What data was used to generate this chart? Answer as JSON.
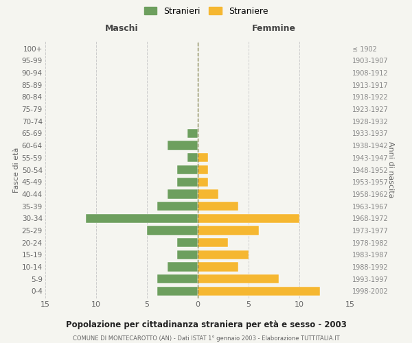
{
  "age_groups": [
    "0-4",
    "5-9",
    "10-14",
    "15-19",
    "20-24",
    "25-29",
    "30-34",
    "35-39",
    "40-44",
    "45-49",
    "50-54",
    "55-59",
    "60-64",
    "65-69",
    "70-74",
    "75-79",
    "80-84",
    "85-89",
    "90-94",
    "95-99",
    "100+"
  ],
  "birth_years": [
    "1998-2002",
    "1993-1997",
    "1988-1992",
    "1983-1987",
    "1978-1982",
    "1973-1977",
    "1968-1972",
    "1963-1967",
    "1958-1962",
    "1953-1957",
    "1948-1952",
    "1943-1947",
    "1938-1942",
    "1933-1937",
    "1928-1932",
    "1923-1927",
    "1918-1922",
    "1913-1917",
    "1908-1912",
    "1903-1907",
    "≤ 1902"
  ],
  "males": [
    4,
    4,
    3,
    2,
    2,
    5,
    11,
    4,
    3,
    2,
    2,
    1,
    3,
    1,
    0,
    0,
    0,
    0,
    0,
    0,
    0
  ],
  "females": [
    12,
    8,
    4,
    5,
    3,
    6,
    10,
    4,
    2,
    1,
    1,
    1,
    0,
    0,
    0,
    0,
    0,
    0,
    0,
    0,
    0
  ],
  "male_color": "#6d9f5e",
  "female_color": "#f5b731",
  "grid_color": "#cccccc",
  "background_color": "#f5f5f0",
  "bar_edge_color": "white",
  "title": "Popolazione per cittadinanza straniera per età e sesso - 2003",
  "subtitle": "COMUNE DI MONTECAROTTO (AN) - Dati ISTAT 1° gennaio 2003 - Elaborazione TUTTITALIA.IT",
  "xlabel_left": "Maschi",
  "xlabel_right": "Femmine",
  "ylabel_left": "Fasce di età",
  "ylabel_right": "Anni di nascita",
  "legend_male": "Stranieri",
  "legend_female": "Straniere",
  "xlim": 15
}
